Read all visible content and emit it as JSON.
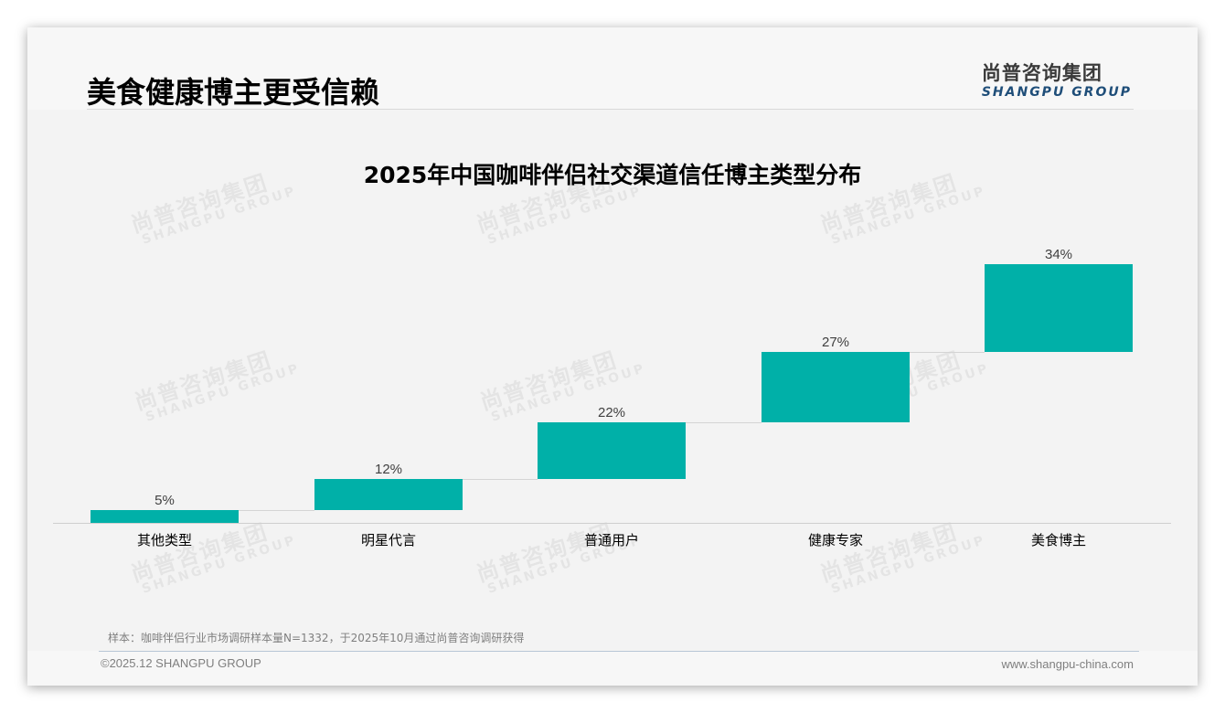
{
  "header": {
    "title": "美食健康博主更受信赖",
    "logo_cn": "尚普咨询集团",
    "logo_en": "SHANGPU GROUP"
  },
  "watermark": {
    "cn": "尚普咨询集团",
    "en": "SHANGPU GROUP"
  },
  "colors": {
    "bar": "#00b0a8",
    "connector": "#d4d4d4",
    "logo_en": "#1f4e79"
  },
  "chart_data": {
    "type": "bar",
    "subtype": "waterfall",
    "title": "2025年中国咖啡伴侣社交渠道信任博主类型分布",
    "categories": [
      "其他类型",
      "明星代言",
      "普通用户",
      "健康专家",
      "美食博主"
    ],
    "values": [
      5,
      12,
      22,
      27,
      34
    ],
    "value_labels": [
      "5%",
      "12%",
      "22%",
      "27%",
      "34%"
    ],
    "xlabel": "",
    "ylabel": "",
    "ylim": [
      0,
      100
    ],
    "grid": false,
    "legend": "none",
    "cumulative": true
  },
  "footer": {
    "note": "样本：咖啡伴侣行业市场调研样本量N=1332，于2025年10月通过尚普咨询调研获得",
    "copyright": "©2025.12 SHANGPU GROUP",
    "website": "www.shangpu-china.com"
  }
}
